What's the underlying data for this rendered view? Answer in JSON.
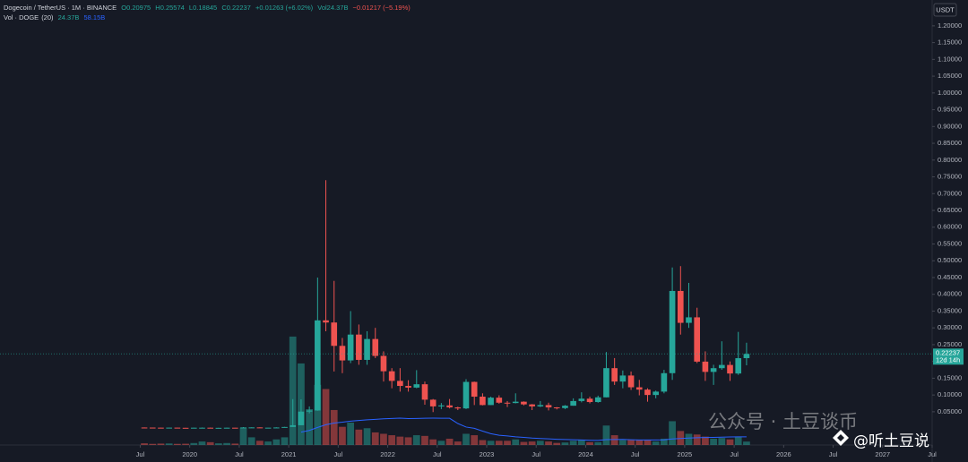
{
  "header": {
    "symbol": "Dogecoin / TetherUS · 1M · BINANCE",
    "ohlc": [
      "O0.20975",
      "H0.25574",
      "L0.18845",
      "C0.22237",
      "+0.01263 (+6.02%)"
    ],
    "volume": "Vol24.37B",
    "volume_change": "−0.01217 (−5.19%)"
  },
  "chart_data": {
    "type": "candlestick",
    "currency": "USDT",
    "x": [
      "2019-07",
      "2019-08",
      "2019-09",
      "2019-10",
      "2019-11",
      "2019-12",
      "2020-01",
      "2020-02",
      "2020-03",
      "2020-04",
      "2020-05",
      "2020-06",
      "2020-07",
      "2020-08",
      "2020-09",
      "2020-10",
      "2020-11",
      "2020-12",
      "2021-01",
      "2021-02",
      "2021-03",
      "2021-04",
      "2021-05",
      "2021-06",
      "2021-07",
      "2021-08",
      "2021-09",
      "2021-10",
      "2021-11",
      "2021-12",
      "2022-01",
      "2022-02",
      "2022-03",
      "2022-04",
      "2022-05",
      "2022-06",
      "2022-07",
      "2022-08",
      "2022-09",
      "2022-10",
      "2022-11",
      "2022-12",
      "2023-01",
      "2023-02",
      "2023-03",
      "2023-04",
      "2023-05",
      "2023-06",
      "2023-07",
      "2023-08",
      "2023-09",
      "2023-10",
      "2023-11",
      "2023-12",
      "2024-01",
      "2024-02",
      "2024-03",
      "2024-04",
      "2024-05",
      "2024-06",
      "2024-07",
      "2024-08",
      "2024-09",
      "2024-10",
      "2024-11",
      "2024-12",
      "2025-01",
      "2025-02",
      "2025-03",
      "2025-04",
      "2025-05",
      "2025-06",
      "2025-07",
      "2025-08"
    ],
    "open": [
      0.0031,
      0.0029,
      0.0026,
      0.0024,
      0.0027,
      0.0022,
      0.002,
      0.0025,
      0.0025,
      0.0018,
      0.0021,
      0.0025,
      0.0024,
      0.0033,
      0.0034,
      0.0026,
      0.0026,
      0.0032,
      0.0047,
      0.0099,
      0.0505,
      0.0538,
      0.3224,
      0.316,
      0.2464,
      0.203,
      0.28,
      0.2046,
      0.2668,
      0.2165,
      0.1707,
      0.142,
      0.127,
      0.122,
      0.132,
      0.086,
      0.066,
      0.069,
      0.063,
      0.06,
      0.139,
      0.095,
      0.07,
      0.092,
      0.077,
      0.076,
      0.08,
      0.072,
      0.066,
      0.07,
      0.063,
      0.061,
      0.068,
      0.082,
      0.089,
      0.079,
      0.093,
      0.18,
      0.14,
      0.158,
      0.123,
      0.116,
      0.1,
      0.11,
      0.165,
      0.41,
      0.315,
      0.3314,
      0.1994,
      0.1688,
      0.1799,
      0.1895,
      0.164,
      0.20975
    ],
    "high": [
      0.0034,
      0.003,
      0.0028,
      0.0029,
      0.0028,
      0.0023,
      0.0026,
      0.0034,
      0.0027,
      0.0022,
      0.0028,
      0.0026,
      0.0044,
      0.0037,
      0.0036,
      0.0028,
      0.0038,
      0.005,
      0.0876,
      0.087,
      0.0659,
      0.45,
      0.74,
      0.44,
      0.27,
      0.35,
      0.31,
      0.29,
      0.3,
      0.23,
      0.18,
      0.18,
      0.144,
      0.174,
      0.14,
      0.088,
      0.076,
      0.088,
      0.065,
      0.147,
      0.14,
      0.105,
      0.095,
      0.099,
      0.082,
      0.105,
      0.081,
      0.073,
      0.082,
      0.077,
      0.064,
      0.07,
      0.09,
      0.108,
      0.095,
      0.098,
      0.228,
      0.21,
      0.173,
      0.17,
      0.145,
      0.12,
      0.113,
      0.175,
      0.48,
      0.484,
      0.434,
      0.36,
      0.23,
      0.19,
      0.26,
      0.2,
      0.288,
      0.25574
    ],
    "low": [
      0.0024,
      0.0024,
      0.0022,
      0.0023,
      0.0021,
      0.0019,
      0.002,
      0.0024,
      0.0012,
      0.0017,
      0.002,
      0.0023,
      0.0024,
      0.003,
      0.0026,
      0.0025,
      0.0025,
      0.0028,
      0.0046,
      0.0097,
      0.0453,
      0.0532,
      0.29,
      0.17,
      0.165,
      0.195,
      0.19,
      0.19,
      0.21,
      0.14,
      0.12,
      0.11,
      0.11,
      0.12,
      0.071,
      0.049,
      0.058,
      0.06,
      0.055,
      0.058,
      0.07,
      0.069,
      0.07,
      0.074,
      0.064,
      0.075,
      0.069,
      0.055,
      0.064,
      0.054,
      0.057,
      0.058,
      0.068,
      0.078,
      0.075,
      0.077,
      0.093,
      0.13,
      0.12,
      0.115,
      0.099,
      0.08,
      0.09,
      0.105,
      0.145,
      0.28,
      0.3,
      0.195,
      0.142,
      0.13,
      0.175,
      0.142,
      0.16,
      0.18845
    ],
    "close": [
      0.0029,
      0.0026,
      0.0024,
      0.0027,
      0.0022,
      0.002,
      0.0025,
      0.0025,
      0.0018,
      0.0021,
      0.0025,
      0.0024,
      0.0033,
      0.0034,
      0.0026,
      0.0026,
      0.0032,
      0.0047,
      0.0099,
      0.0505,
      0.0538,
      0.3224,
      0.316,
      0.2464,
      0.203,
      0.28,
      0.2046,
      0.2668,
      0.2165,
      0.1707,
      0.142,
      0.127,
      0.122,
      0.132,
      0.086,
      0.066,
      0.069,
      0.063,
      0.06,
      0.139,
      0.095,
      0.07,
      0.092,
      0.077,
      0.076,
      0.08,
      0.072,
      0.066,
      0.07,
      0.063,
      0.061,
      0.068,
      0.082,
      0.089,
      0.079,
      0.093,
      0.18,
      0.14,
      0.158,
      0.123,
      0.116,
      0.1,
      0.11,
      0.165,
      0.41,
      0.315,
      0.3314,
      0.1994,
      0.1688,
      0.1799,
      0.1895,
      0.164,
      0.2097,
      0.22237
    ],
    "volume": [
      12,
      8,
      10,
      11,
      8,
      9,
      14,
      25,
      20,
      12,
      14,
      10,
      125,
      55,
      30,
      25,
      40,
      55,
      775,
      583,
      256,
      430,
      400,
      250,
      130,
      160,
      110,
      120,
      90,
      80,
      70,
      60,
      55,
      70,
      65,
      40,
      30,
      45,
      25,
      80,
      70,
      35,
      30,
      30,
      30,
      40,
      22,
      25,
      30,
      25,
      15,
      18,
      30,
      35,
      20,
      20,
      139,
      70,
      35,
      35,
      35,
      35,
      25,
      45,
      170,
      100,
      80,
      75,
      60,
      45,
      50,
      40,
      60,
      24.37
    ],
    "volume_lim": [
      0,
      800
    ],
    "up_color": "#26a69a",
    "down_color": "#ef5350",
    "volume_ma": {
      "name": "Vol · DOGE",
      "period": 20,
      "period_label": "(20)",
      "last_volume": "24.37B",
      "last_ma": "58.15B",
      "color": "#2962ff"
    },
    "xlim": [
      "2018-02",
      "2027-07"
    ],
    "xticks": [
      {
        "value": "2019-07",
        "label": "Jul"
      },
      {
        "value": "2020-01",
        "label": "2020"
      },
      {
        "value": "2020-07",
        "label": "Jul"
      },
      {
        "value": "2021-01",
        "label": "2021"
      },
      {
        "value": "2021-07",
        "label": "Jul"
      },
      {
        "value": "2022-01",
        "label": "2022"
      },
      {
        "value": "2022-07",
        "label": "Jul"
      },
      {
        "value": "2023-01",
        "label": "2023"
      },
      {
        "value": "2023-07",
        "label": "Jul"
      },
      {
        "value": "2024-01",
        "label": "2024"
      },
      {
        "value": "2024-07",
        "label": "Jul"
      },
      {
        "value": "2025-01",
        "label": "2025"
      },
      {
        "value": "2025-07",
        "label": "Jul"
      },
      {
        "value": "2026-01",
        "label": "2026"
      },
      {
        "value": "2026-07",
        "label": "Jul"
      },
      {
        "value": "2027-01",
        "label": "2027"
      },
      {
        "value": "2027-07",
        "label": "Jul"
      }
    ],
    "ylim": [
      -0.049,
      1.277
    ],
    "yticks": [
      {
        "value": 0.05,
        "label": "0.05000"
      },
      {
        "value": 0.1,
        "label": "0.10000"
      },
      {
        "value": 0.15,
        "label": "0.15000"
      },
      {
        "value": 0.2,
        "label": "0.20000"
      },
      {
        "value": 0.25,
        "label": "0.25000"
      },
      {
        "value": 0.3,
        "label": "0.30000"
      },
      {
        "value": 0.35,
        "label": "0.35000"
      },
      {
        "value": 0.4,
        "label": "0.40000"
      },
      {
        "value": 0.45,
        "label": "0.45000"
      },
      {
        "value": 0.5,
        "label": "0.50000"
      },
      {
        "value": 0.55,
        "label": "0.55000"
      },
      {
        "value": 0.6,
        "label": "0.60000"
      },
      {
        "value": 0.65,
        "label": "0.65000"
      },
      {
        "value": 0.7,
        "label": "0.70000"
      },
      {
        "value": 0.75,
        "label": "0.75000"
      },
      {
        "value": 0.8,
        "label": "0.80000"
      },
      {
        "value": 0.85,
        "label": "0.85000"
      },
      {
        "value": 0.9,
        "label": "0.90000"
      },
      {
        "value": 0.95,
        "label": "0.95000"
      },
      {
        "value": 1.0,
        "label": "1.00000"
      },
      {
        "value": 1.05,
        "label": "1.05000"
      },
      {
        "value": 1.1,
        "label": "1.10000"
      },
      {
        "value": 1.15,
        "label": "1.15000"
      },
      {
        "value": 1.2,
        "label": "1.20000"
      }
    ],
    "grid": false,
    "price_tag": {
      "price": "0.22237",
      "countdown": "12d 14h"
    }
  },
  "watermark": {
    "main": "公众号 · 土豆谈币",
    "handle": "@听土豆说"
  }
}
